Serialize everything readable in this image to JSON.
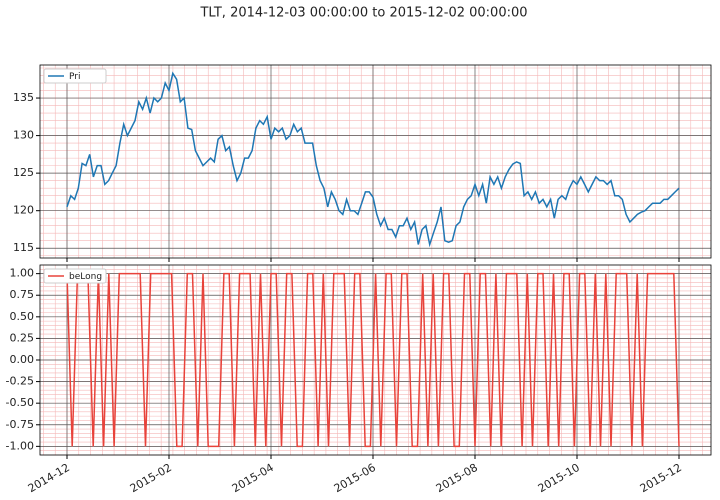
{
  "chart_data": [
    {
      "type": "line",
      "title": "TLT, 2014-12-03 00:00:00 to 2015-12-02 00:00:00",
      "sharex": true,
      "grid": true,
      "minor_grid": true,
      "legend": "upper left",
      "ylim": [
        113.7,
        139.4
      ],
      "yticks": [
        115,
        120,
        125,
        130,
        135
      ],
      "series": [
        {
          "name": "Pri",
          "color": "#1f77b4",
          "values": [
            120.5,
            122,
            121.5,
            123,
            126.3,
            126,
            127.5,
            124.5,
            126,
            126,
            123.5,
            124,
            125,
            126,
            129,
            131.5,
            130,
            131,
            132,
            134.5,
            133.5,
            135,
            133,
            135,
            134.5,
            135,
            137,
            136,
            138.3,
            137.5,
            134.5,
            135,
            131,
            130.8,
            128,
            127,
            126,
            126.5,
            127,
            126.5,
            129.5,
            130,
            128,
            128.5,
            126,
            124,
            125,
            127,
            127,
            128,
            131,
            132,
            131.5,
            132.5,
            129.5,
            131,
            130.5,
            131,
            129.5,
            130,
            131.5,
            130.5,
            131,
            129,
            129,
            129,
            126,
            124,
            123,
            120.5,
            122.5,
            121.5,
            120,
            119.5,
            121.5,
            120,
            120,
            119.5,
            121,
            122.5,
            122.5,
            121.8,
            119.5,
            118,
            119,
            117.5,
            117.5,
            116.5,
            118,
            118,
            119,
            117.5,
            118.5,
            115.5,
            117.5,
            118,
            115.5,
            117,
            118.5,
            120.5,
            116,
            115.8,
            116,
            118,
            118.5,
            120.5,
            121.5,
            122,
            123.5,
            122,
            123.5,
            121,
            124.5,
            123.5,
            124.5,
            123,
            124.5,
            125.5,
            126.2,
            126.5,
            126.3,
            122,
            122.5,
            121.5,
            122.5,
            121,
            121.5,
            120.5,
            121.5,
            119,
            121.5,
            122,
            121.5,
            123,
            124,
            123.5,
            124.5,
            123.5,
            122.5,
            123.5,
            124.5,
            124,
            124,
            123.5,
            124,
            122,
            122,
            121.5,
            119.5,
            118.5,
            119,
            119.5,
            119.8,
            120,
            120.5,
            121,
            121,
            121,
            121.5,
            121.5,
            122,
            122.5,
            123
          ]
        }
      ]
    },
    {
      "type": "line",
      "grid": true,
      "minor_grid": true,
      "legend": "upper left",
      "xticks": [
        "2014-12",
        "2015-02",
        "2015-04",
        "2015-06",
        "2015-08",
        "2015-10",
        "2015-12"
      ],
      "ylim": [
        -1.1,
        1.1
      ],
      "yticks": [
        {
          "value": -1,
          "label": "-1.00"
        },
        {
          "value": -0.75,
          "label": "-0.75"
        },
        {
          "value": -0.5,
          "label": "-0.50"
        },
        {
          "value": -0.25,
          "label": "-0.25"
        },
        {
          "value": 0,
          "label": "0.00"
        },
        {
          "value": 0.25,
          "label": "0.25"
        },
        {
          "value": 0.5,
          "label": "0.50"
        },
        {
          "value": 0.75,
          "label": "0.75"
        },
        {
          "value": 1,
          "label": "1.00"
        }
      ],
      "series": [
        {
          "name": "beLong",
          "color": "#e8423a",
          "values": [
            1,
            -1,
            1,
            1,
            1,
            -1,
            1,
            -1,
            1,
            -1,
            1,
            1,
            1,
            1,
            1,
            -1,
            1,
            1,
            1,
            1,
            1,
            -1,
            -1,
            1,
            1,
            -1,
            1,
            -1,
            -1,
            -1,
            1,
            1,
            -1,
            1,
            1,
            1,
            -1,
            1,
            -1,
            1,
            1,
            -1,
            1,
            1,
            -1,
            -1,
            1,
            1,
            -1,
            1,
            -1,
            1,
            1,
            1,
            -1,
            1,
            1,
            -1,
            -1,
            1,
            -1,
            1,
            1,
            -1,
            1,
            1,
            -1,
            -1,
            1,
            -1,
            1,
            -1,
            1,
            1,
            -1,
            -1,
            1,
            1,
            -1,
            1,
            1,
            -1,
            1,
            -1,
            1,
            1,
            1,
            -1,
            1,
            -1,
            1,
            1,
            -1,
            1,
            -1,
            1,
            1,
            -1,
            1,
            1,
            -1,
            1,
            -1,
            1,
            -1,
            1,
            1,
            1,
            -1,
            1,
            -1,
            1,
            1,
            1,
            1,
            1,
            1,
            -1
          ]
        }
      ]
    }
  ]
}
